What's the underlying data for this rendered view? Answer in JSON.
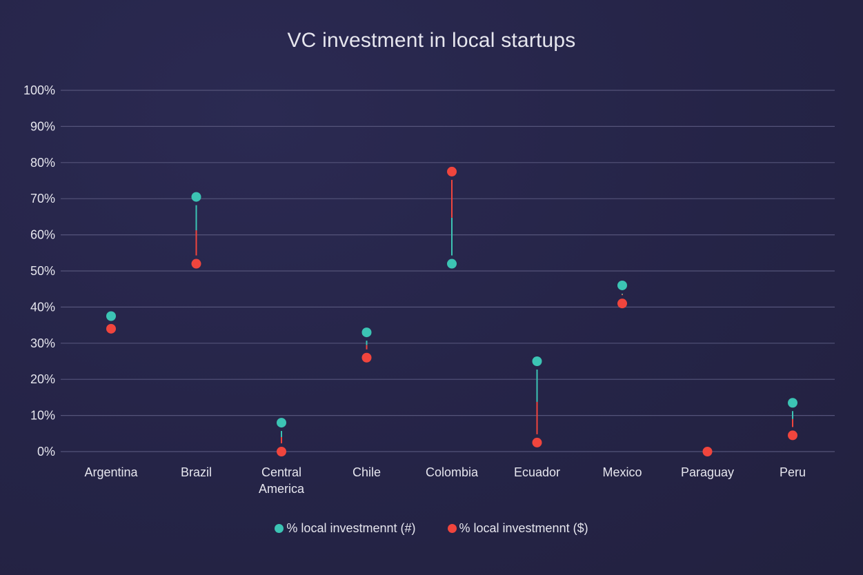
{
  "colors": {
    "count": "#3cc4b4",
    "amount": "#f0453d",
    "grid": "#55547a",
    "text": "#e6e6ee"
  },
  "chart_data": {
    "type": "dumbbell",
    "title": "VC investment in local startups",
    "categories": [
      "Argentina",
      "Brazil",
      "Central America",
      "Chile",
      "Colombia",
      "Ecuador",
      "Mexico",
      "Paraguay",
      "Peru"
    ],
    "y_ticks": [
      "0%",
      "10%",
      "20%",
      "30%",
      "40%",
      "50%",
      "60%",
      "70%",
      "80%",
      "90%",
      "100%"
    ],
    "ylim": [
      0,
      100
    ],
    "grid": true,
    "legend_position": "bottom-center",
    "series": [
      {
        "name": "% local investmennt (#)",
        "color": "#3cc4b4",
        "values": [
          37.5,
          70.5,
          8,
          33,
          52,
          25,
          46,
          null,
          13.5
        ]
      },
      {
        "name": "% local investmennt ($)",
        "color": "#f0453d",
        "values": [
          34,
          52,
          0,
          26,
          77.5,
          2.5,
          41,
          0,
          4.5
        ]
      }
    ]
  }
}
